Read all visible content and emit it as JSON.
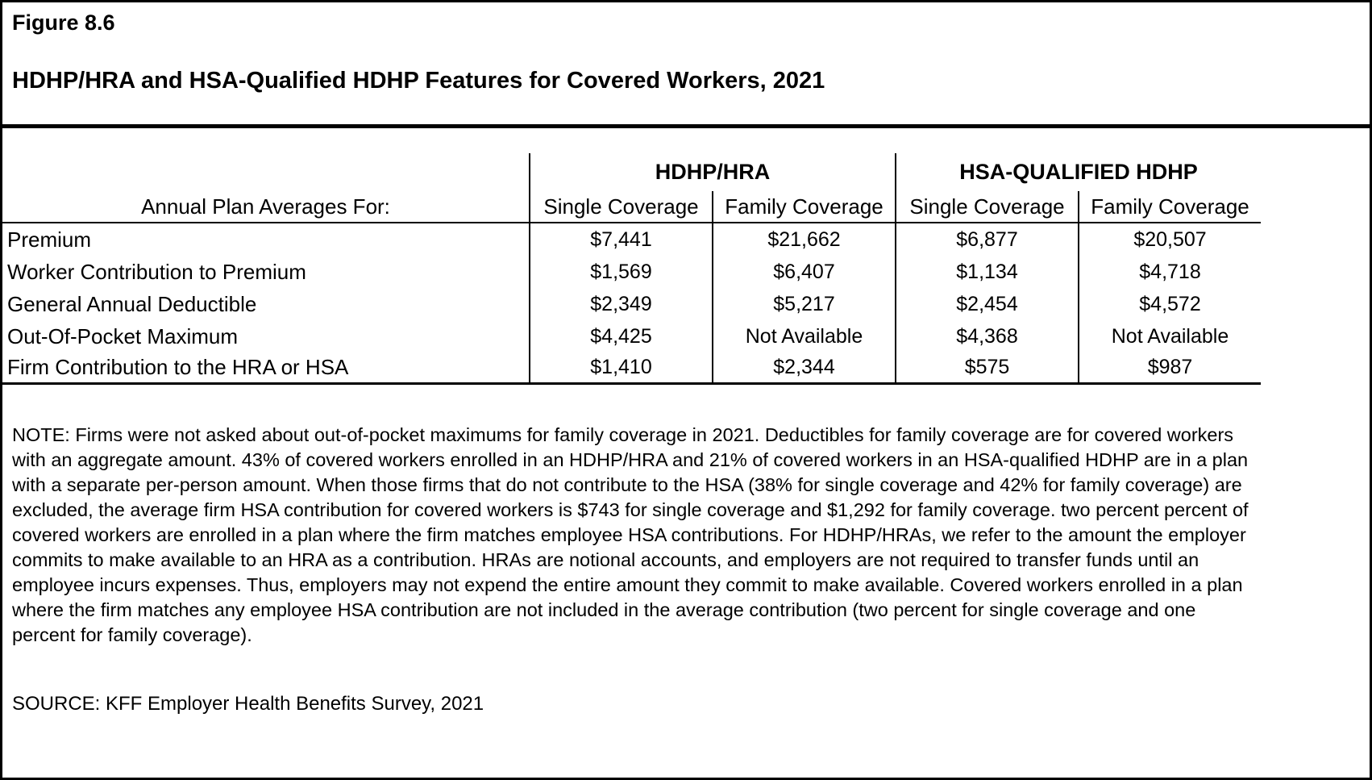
{
  "figure": {
    "label": "Figure 8.6",
    "title": "HDHP/HRA and HSA-Qualified HDHP Features for Covered Workers, 2021"
  },
  "table": {
    "row_header": "Annual Plan Averages For:",
    "groups": [
      {
        "label": "HDHP/HRA"
      },
      {
        "label": "HSA-QUALIFIED HDHP"
      }
    ],
    "columns": [
      "Single Coverage",
      "Family Coverage",
      "Single Coverage",
      "Family Coverage"
    ],
    "rows": [
      {
        "label": "Premium",
        "values": [
          "$7,441",
          "$21,662",
          "$6,877",
          "$20,507"
        ]
      },
      {
        "label": "Worker Contribution to Premium",
        "values": [
          "$1,569",
          "$6,407",
          "$1,134",
          "$4,718"
        ]
      },
      {
        "label": "General Annual Deductible",
        "values": [
          "$2,349",
          "$5,217",
          "$2,454",
          "$4,572"
        ]
      },
      {
        "label": "Out-Of-Pocket Maximum",
        "values": [
          "$4,425",
          "Not Available",
          "$4,368",
          "Not Available"
        ]
      },
      {
        "label": "Firm Contribution to the HRA or HSA",
        "values": [
          "$1,410",
          "$2,344",
          "$575",
          "$987"
        ]
      }
    ]
  },
  "note": "NOTE: Firms were not asked about out-of-pocket maximums for family coverage in 2021. Deductibles for family coverage are for covered workers with an aggregate amount. 43%  of covered workers enrolled in an HDHP/HRA and 21% of covered workers in an HSA-qualified HDHP are in a plan with a separate per-person amount. When those firms that do not contribute to the HSA (38% for single coverage and 42% for family coverage) are excluded, the average firm HSA contribution for covered workers is $743 for single coverage and $1,292 for family coverage. two percent percent of covered workers are enrolled in a plan where the firm matches employee HSA contributions. For HDHP/HRAs, we refer to the amount the employer commits to make available to an HRA as a contribution. HRAs are notional accounts, and employers are not required to transfer funds until an employee incurs expenses. Thus, employers may not expend the entire amount they commit to make available. Covered workers enrolled in a plan where the firm matches any employee HSA contribution are not included in the average contribution (two percent for single coverage and one percent for family coverage).",
  "source": "SOURCE: KFF Employer Health Benefits Survey, 2021"
}
